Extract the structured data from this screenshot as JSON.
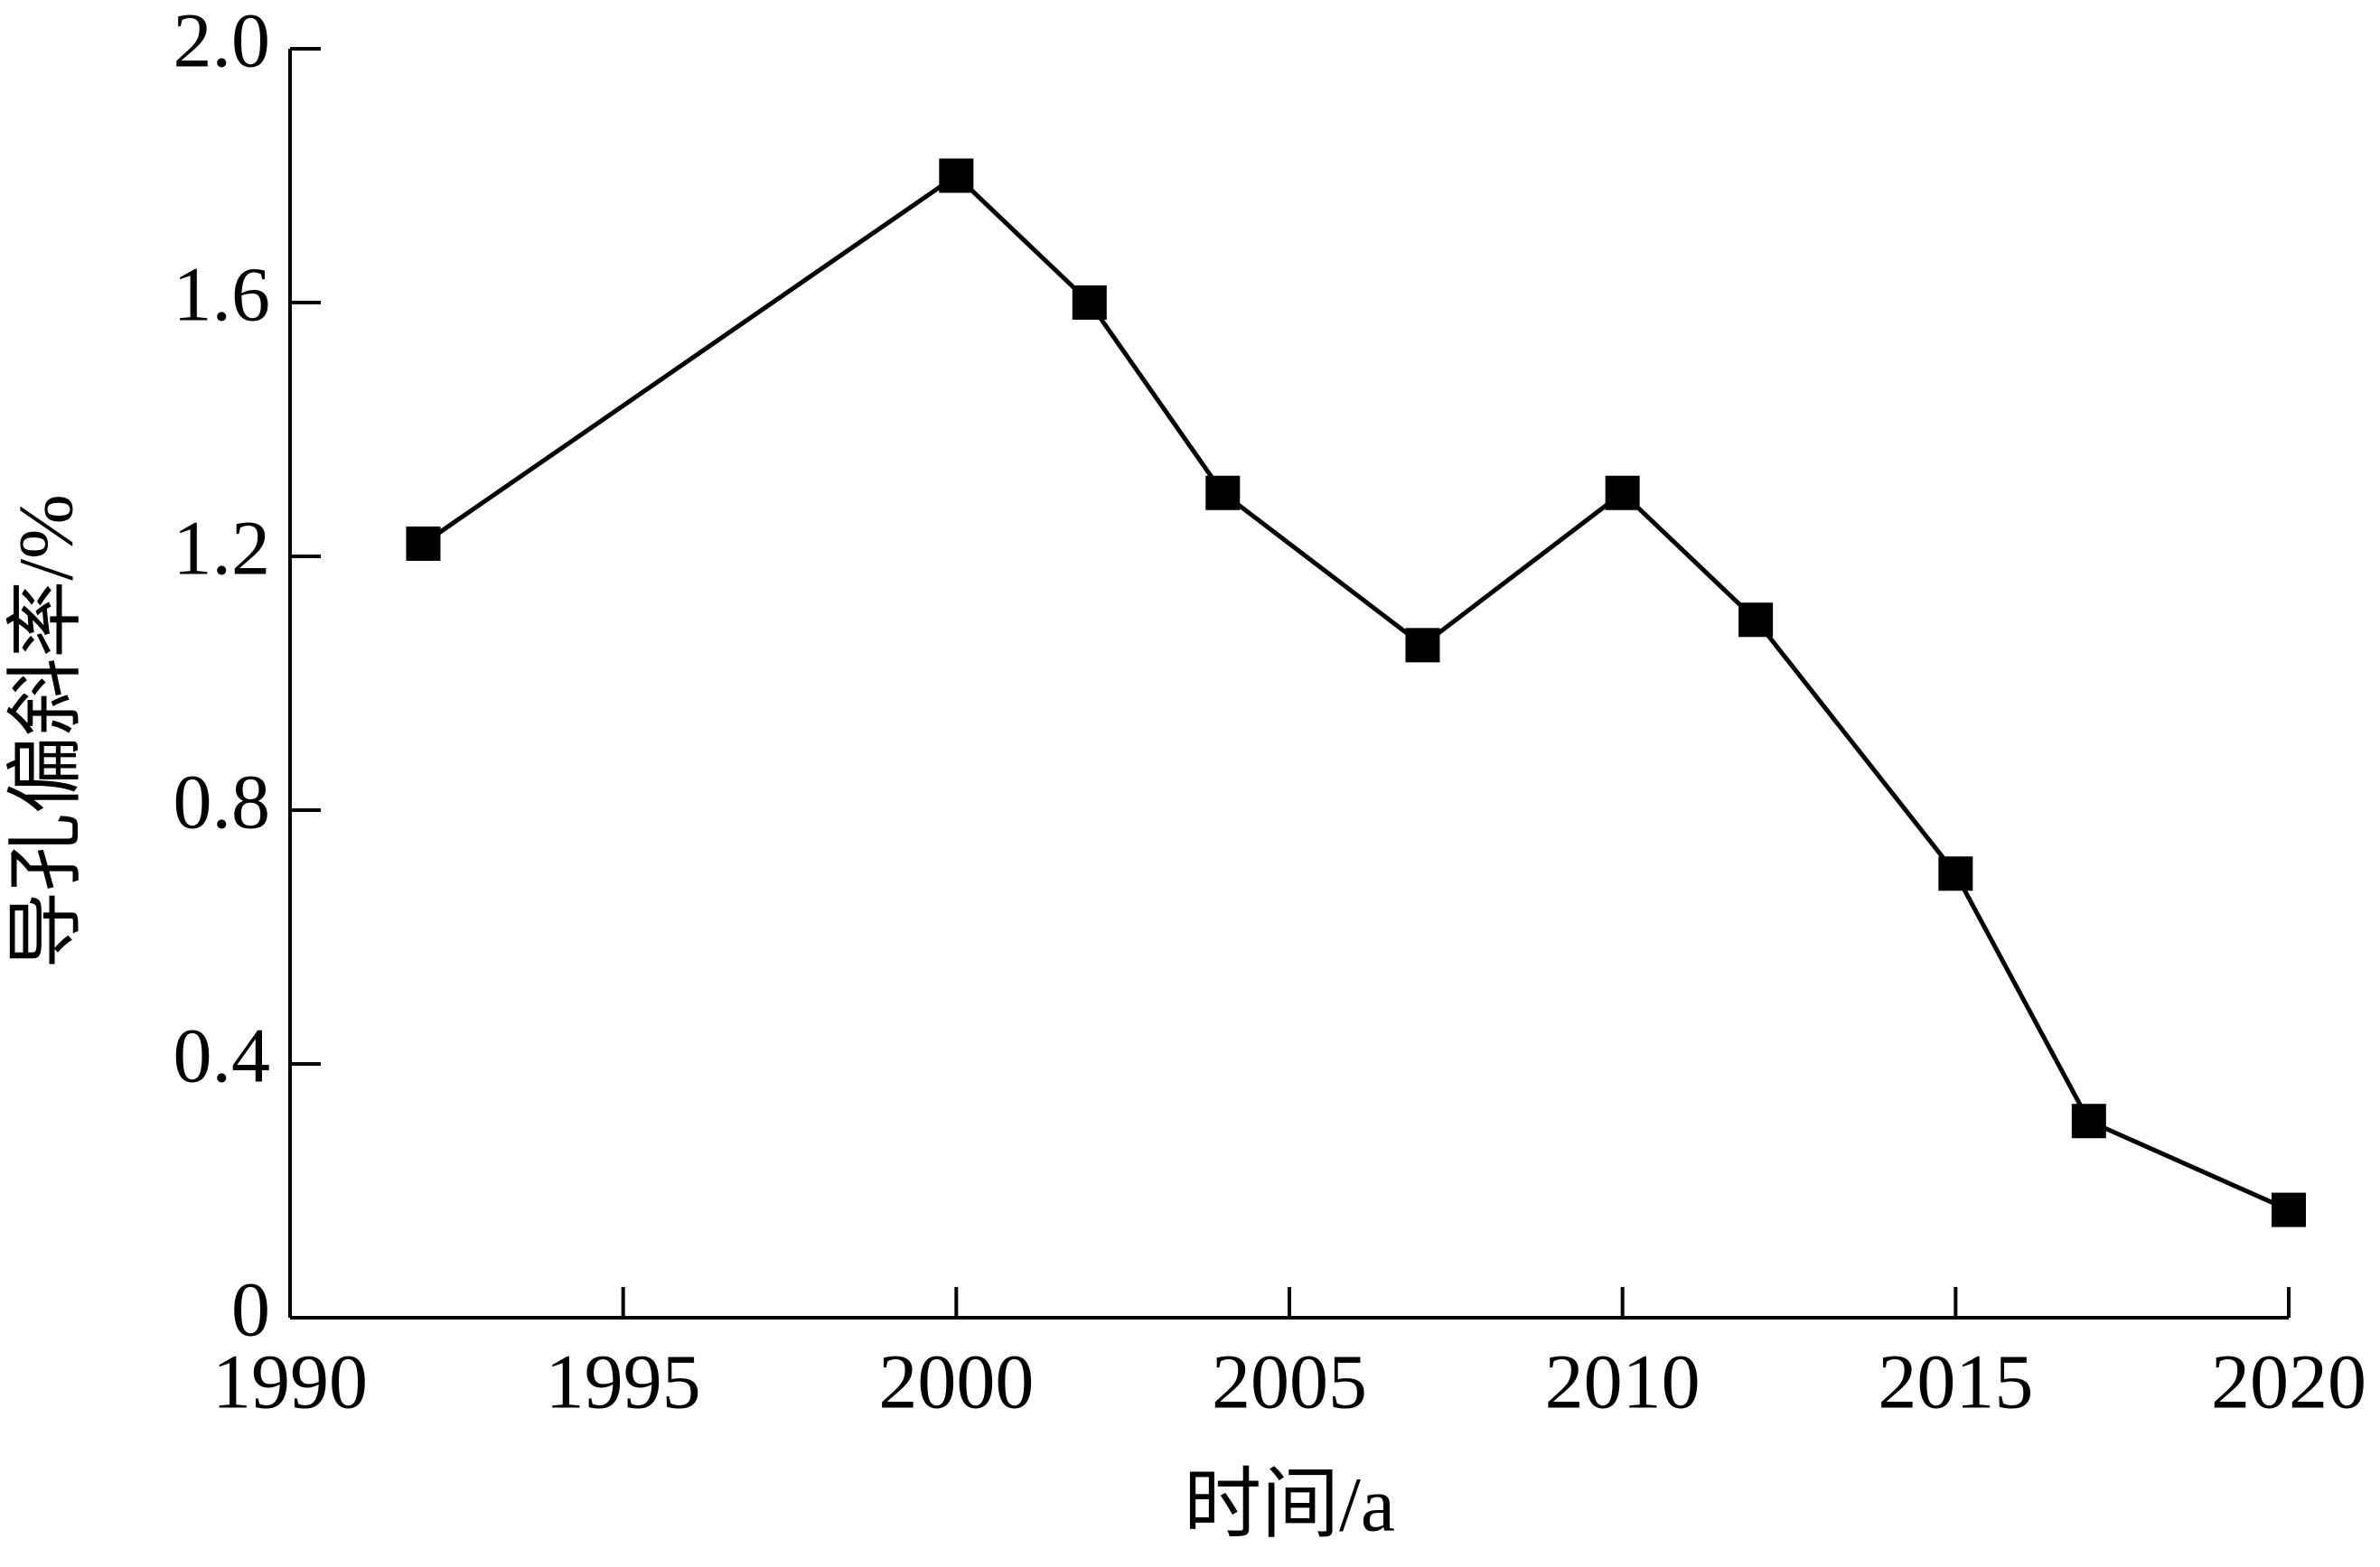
{
  "chart_data": {
    "type": "line",
    "x_label": "时间/a",
    "y_label": "导孔偏斜率/%",
    "x": [
      1992,
      2000,
      2002,
      2004,
      2007,
      2010,
      2012,
      2015,
      2017,
      2020
    ],
    "series": [
      {
        "name": "导孔偏斜率",
        "color": "#000000",
        "values": [
          1.22,
          1.8,
          1.6,
          1.3,
          1.06,
          1.3,
          1.1,
          0.7,
          0.31,
          0.17
        ]
      }
    ],
    "xlim": [
      1990,
      2020
    ],
    "xticks": [
      1990,
      1995,
      2000,
      2005,
      2010,
      2015,
      2020
    ],
    "ylim": [
      0,
      2
    ],
    "yticks": [
      0,
      {
        "value": 0.4,
        "label": "0.4"
      },
      {
        "value": 0.8,
        "label": "0.8"
      },
      {
        "value": 1.2,
        "label": "1.2"
      },
      {
        "value": 1.6,
        "label": "1.6"
      },
      {
        "value": 2,
        "label": "2.0"
      }
    ],
    "marker": "square",
    "grid": false
  }
}
